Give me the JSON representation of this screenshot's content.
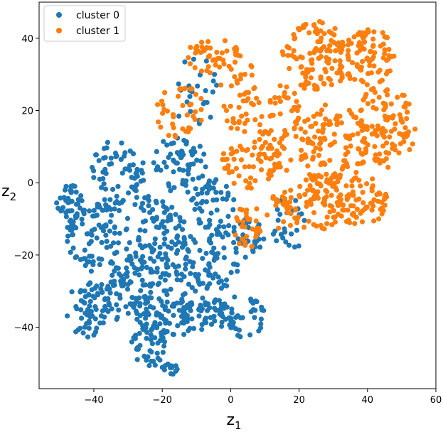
{
  "chart_data": {
    "type": "scatter",
    "xlabel": "z",
    "xlabel_sub": "1",
    "ylabel": "z",
    "ylabel_sub": "2",
    "xlim": [
      -56,
      60
    ],
    "ylim": [
      -57,
      50
    ],
    "xticks": [
      -40,
      -20,
      0,
      20,
      40,
      60
    ],
    "yticks": [
      -40,
      -20,
      0,
      20,
      40
    ],
    "xtick_labels": [
      "−40",
      "−20",
      "0",
      "20",
      "40",
      "60"
    ],
    "ytick_labels": [
      "−40",
      "−20",
      "0",
      "20",
      "40"
    ],
    "legend_position": "top-left",
    "series": [
      {
        "name": "cluster 0",
        "color": "#1f77b4",
        "regions": [
          {
            "cx": -47,
            "cy": -5,
            "rx": 4,
            "ry": 5,
            "n": 35
          },
          {
            "cx": -40,
            "cy": -15,
            "rx": 8,
            "ry": 10,
            "n": 90
          },
          {
            "cx": -33,
            "cy": 2,
            "rx": 8,
            "ry": 10,
            "n": 70
          },
          {
            "cx": -42,
            "cy": -35,
            "rx": 6,
            "ry": 8,
            "n": 60
          },
          {
            "cx": -30,
            "cy": -30,
            "rx": 8,
            "ry": 10,
            "n": 90
          },
          {
            "cx": -22,
            "cy": -15,
            "rx": 9,
            "ry": 12,
            "n": 110
          },
          {
            "cx": -24,
            "cy": -45,
            "rx": 5,
            "ry": 6,
            "n": 45
          },
          {
            "cx": -16,
            "cy": -32,
            "rx": 8,
            "ry": 12,
            "n": 90
          },
          {
            "cx": -15,
            "cy": 5,
            "rx": 8,
            "ry": 8,
            "n": 60
          },
          {
            "cx": -5,
            "cy": -20,
            "rx": 8,
            "ry": 10,
            "n": 70
          },
          {
            "cx": -7,
            "cy": -37,
            "rx": 8,
            "ry": 5,
            "n": 55
          },
          {
            "cx": 3,
            "cy": -37,
            "rx": 7,
            "ry": 6,
            "n": 40
          },
          {
            "cx": -5,
            "cy": -5,
            "rx": 7,
            "ry": 8,
            "n": 45
          },
          {
            "cx": -10,
            "cy": 25,
            "rx": 7,
            "ry": 10,
            "n": 25
          },
          {
            "cx": 5,
            "cy": -15,
            "rx": 5,
            "ry": 6,
            "n": 30
          },
          {
            "cx": 17,
            "cy": -12,
            "rx": 5,
            "ry": 8,
            "n": 25
          },
          {
            "cx": -17,
            "cy": -51,
            "rx": 3,
            "ry": 2,
            "n": 12
          }
        ]
      },
      {
        "name": "cluster 1",
        "color": "#ff7f0e",
        "regions": [
          {
            "cx": -15,
            "cy": 20,
            "rx": 7,
            "ry": 8,
            "n": 40
          },
          {
            "cx": -5,
            "cy": 35,
            "rx": 8,
            "ry": 5,
            "n": 45
          },
          {
            "cx": 3,
            "cy": 25,
            "rx": 6,
            "ry": 12,
            "n": 45
          },
          {
            "cx": 5,
            "cy": 5,
            "rx": 8,
            "ry": 7,
            "n": 50
          },
          {
            "cx": 15,
            "cy": 15,
            "rx": 7,
            "ry": 12,
            "n": 70
          },
          {
            "cx": 25,
            "cy": 35,
            "rx": 10,
            "ry": 10,
            "n": 120
          },
          {
            "cx": 40,
            "cy": 35,
            "rx": 8,
            "ry": 8,
            "n": 80
          },
          {
            "cx": 45,
            "cy": 15,
            "rx": 9,
            "ry": 12,
            "n": 110
          },
          {
            "cx": 30,
            "cy": 10,
            "rx": 10,
            "ry": 12,
            "n": 120
          },
          {
            "cx": 25,
            "cy": -5,
            "rx": 10,
            "ry": 8,
            "n": 90
          },
          {
            "cx": 38,
            "cy": -5,
            "rx": 8,
            "ry": 7,
            "n": 60
          },
          {
            "cx": 5,
            "cy": -12,
            "rx": 4,
            "ry": 8,
            "n": 30
          },
          {
            "cx": 15,
            "cy": -8,
            "rx": 5,
            "ry": 5,
            "n": 25
          }
        ]
      }
    ]
  }
}
